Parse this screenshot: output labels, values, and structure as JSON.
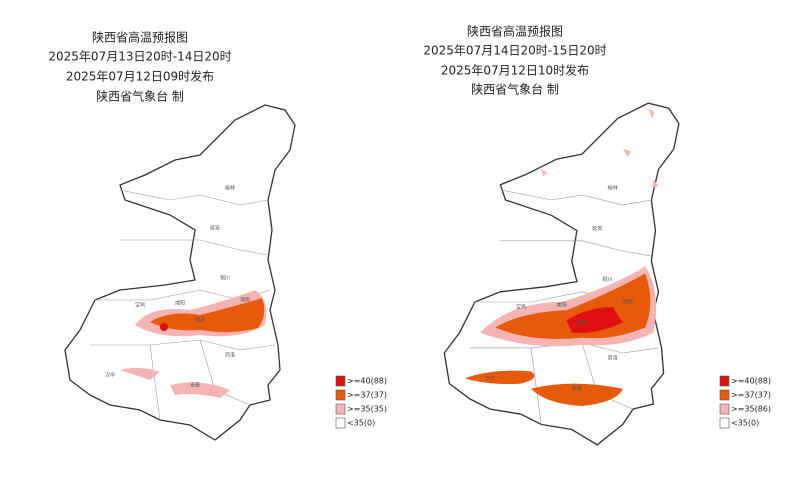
{
  "maps": [
    {
      "title": "陕西省高温预报图",
      "period": "2025年07月13日20时-14日20时",
      "issued": "2025年07月12日09时发布",
      "issuer": "陕西省气象台 制",
      "cities": [
        "榆林",
        "延安",
        "铜川",
        "宝鸡",
        "咸阳",
        "西安",
        "渭南",
        "汉中",
        "商洛",
        "安康"
      ],
      "legend": [
        {
          "label": ">=40(88)",
          "color": "#e01010"
        },
        {
          "label": ">=37(37)",
          "color": "#e65a0a"
        },
        {
          "label": ">=35(35)",
          "color": "#f5b4b4"
        },
        {
          "label": "<35(0)",
          "color": "#ffffff"
        }
      ]
    },
    {
      "title": "陕西省高温预报图",
      "period": "2025年07月14日20时-15日20时",
      "issued": "2025年07月12日10时发布",
      "issuer": "陕西省气象台 制",
      "cities": [
        "榆林",
        "延安",
        "铜川",
        "宝鸡",
        "咸阳",
        "西安",
        "渭南",
        "汉中",
        "商洛",
        "安康"
      ],
      "legend": [
        {
          "label": ">=40(88)",
          "color": "#e01010"
        },
        {
          "label": ">=37(37)",
          "color": "#e65a0a"
        },
        {
          "label": ">=35(86)",
          "color": "#f5b4b4"
        },
        {
          "label": "<35(0)",
          "color": "#ffffff"
        }
      ]
    }
  ]
}
